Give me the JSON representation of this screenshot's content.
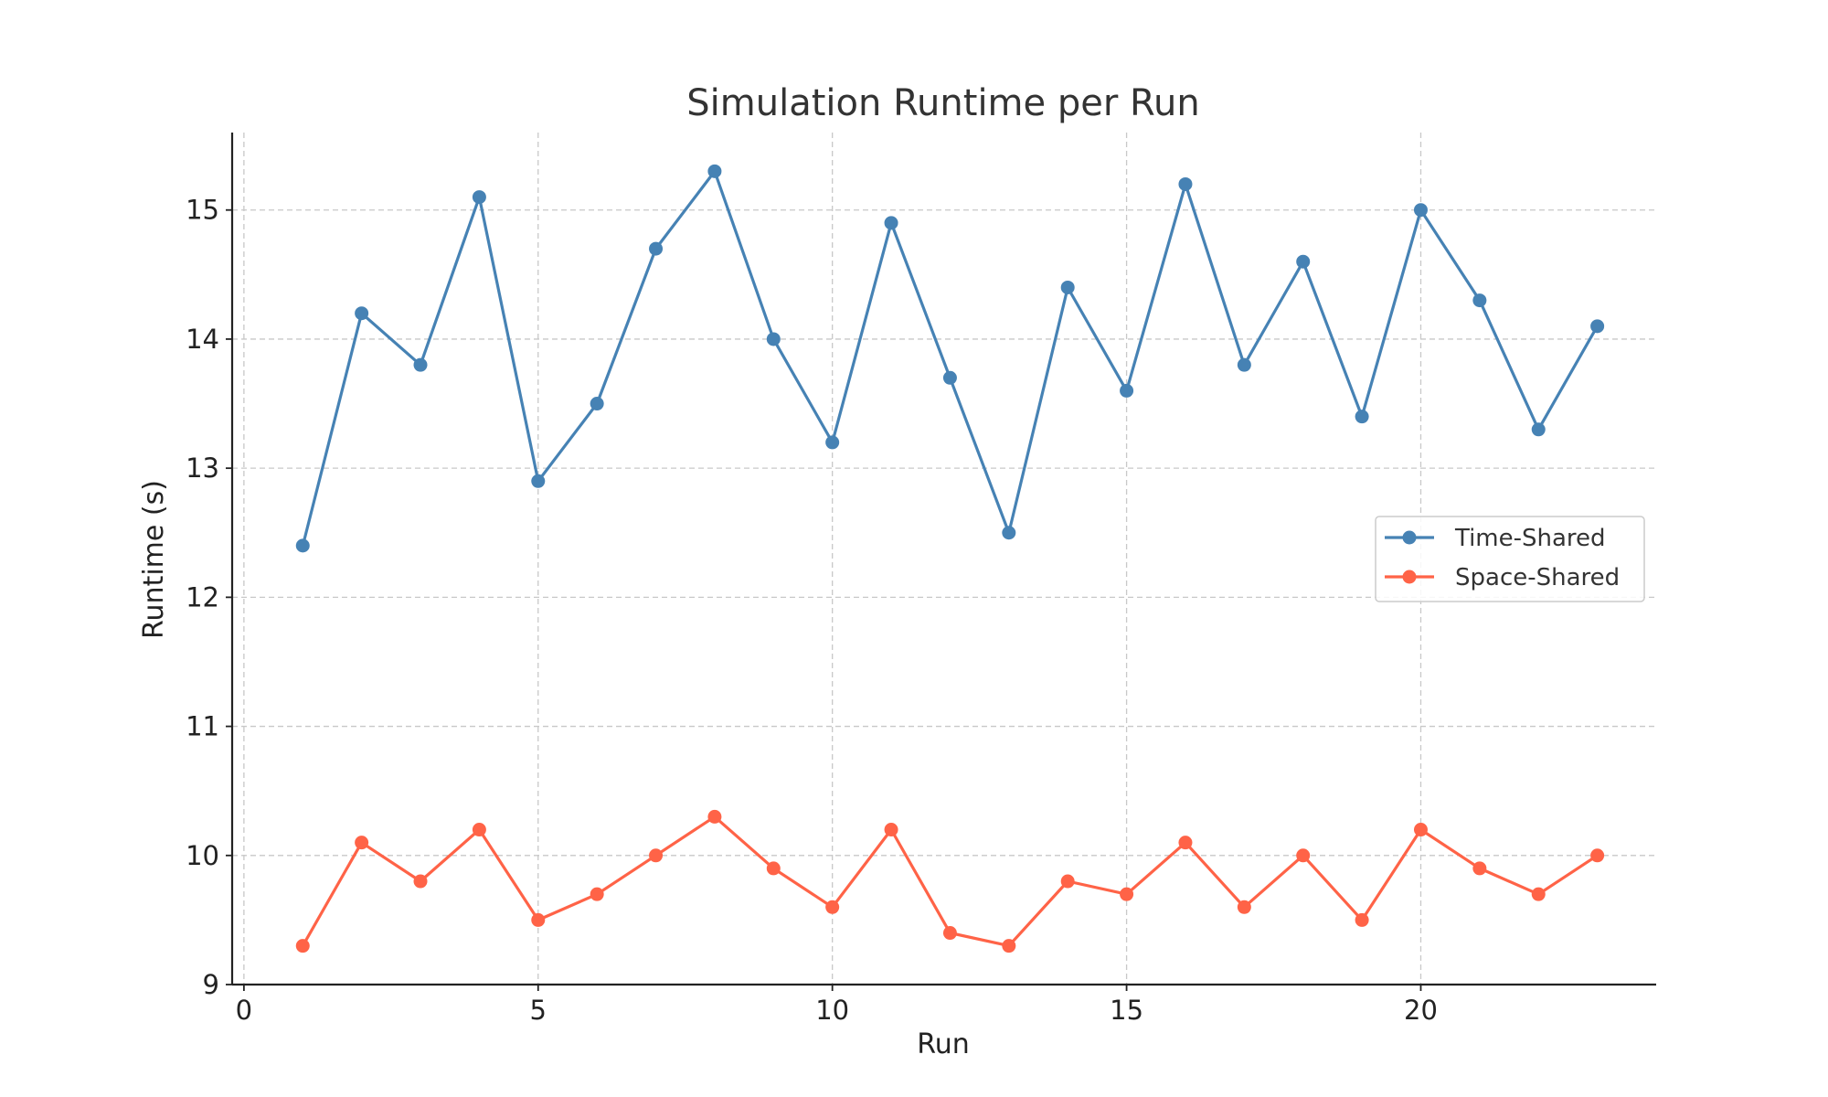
{
  "chart_data": {
    "type": "line",
    "title": "Simulation Runtime per Run",
    "xlabel": "Run",
    "ylabel": "Runtime (s)",
    "xlim": [
      -0.2,
      24.0
    ],
    "ylim": [
      9,
      15.6
    ],
    "xticks": [
      0,
      5,
      10,
      15,
      20
    ],
    "yticks": [
      9,
      10,
      11,
      12,
      13,
      14,
      15
    ],
    "grid": true,
    "legend_position": "center-right",
    "x": [
      1,
      2,
      3,
      4,
      5,
      6,
      7,
      8,
      9,
      10,
      11,
      12,
      13,
      14,
      15,
      16,
      17,
      18,
      19,
      20,
      21,
      22,
      23
    ],
    "series": [
      {
        "name": "Time-Shared",
        "color": "#4682b4",
        "marker": "circle",
        "values": [
          12.4,
          14.2,
          13.8,
          15.1,
          12.9,
          13.5,
          14.7,
          15.3,
          14.0,
          13.2,
          14.9,
          13.7,
          12.5,
          14.4,
          13.6,
          15.2,
          13.8,
          14.6,
          13.4,
          15.0,
          14.3,
          13.3,
          14.1
        ]
      },
      {
        "name": "Space-Shared",
        "color": "#ff6347",
        "marker": "circle",
        "values": [
          9.3,
          10.1,
          9.8,
          10.2,
          9.5,
          9.7,
          10.0,
          10.3,
          9.9,
          9.6,
          10.2,
          9.4,
          9.3,
          9.8,
          9.7,
          10.1,
          9.6,
          10.0,
          9.5,
          10.2,
          9.9,
          9.7,
          10.0
        ]
      }
    ]
  }
}
